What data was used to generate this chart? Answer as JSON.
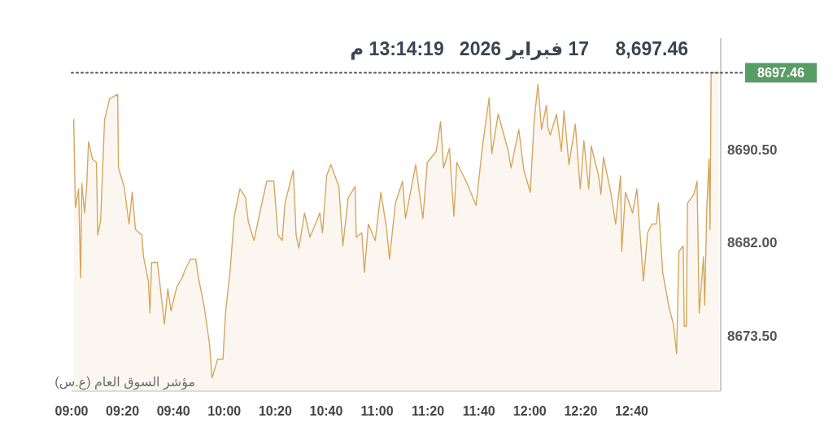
{
  "chart_data": {
    "type": "area",
    "title": "8,697.46",
    "subtitle": "17 فبراير 2026   13:14:19 م",
    "annotations": [
      "مؤشر السوق العام (ع.س)"
    ],
    "color": "#d6a65e",
    "x": [
      9.014,
      9.025,
      9.046,
      9.059,
      9.067,
      9.085,
      9.098,
      9.111,
      9.137,
      9.163,
      9.171,
      9.19,
      9.216,
      9.249,
      9.302,
      9.307,
      9.344,
      9.376,
      9.397,
      9.418,
      9.46,
      9.471,
      9.503,
      9.513,
      9.524,
      9.562,
      9.608,
      9.63,
      9.651,
      9.689,
      9.724,
      9.742,
      9.778,
      9.813,
      9.831,
      9.867,
      9.902,
      9.92,
      9.956,
      9.991,
      10.009,
      10.037,
      10.065,
      10.102,
      10.139,
      10.157,
      10.194,
      10.232,
      10.278,
      10.324,
      10.351,
      10.379,
      10.397,
      10.452,
      10.47,
      10.488,
      10.525,
      10.561,
      10.625,
      10.643,
      10.67,
      10.697,
      10.75,
      10.776,
      10.811,
      10.856,
      10.864,
      10.9,
      10.917,
      10.943,
      10.988,
      11.025,
      11.063,
      11.081,
      11.12,
      11.167,
      11.186,
      11.253,
      11.3,
      11.329,
      11.387,
      11.416,
      11.435,
      11.474,
      11.503,
      11.522,
      11.589,
      11.648,
      11.692,
      11.734,
      11.751,
      11.793,
      11.86,
      11.877,
      11.928,
      11.961,
      12.003,
      12.028,
      12.053,
      12.077,
      12.109,
      12.118,
      12.134,
      12.175,
      12.207,
      12.224,
      12.256,
      12.298,
      12.33,
      12.354,
      12.386,
      12.402,
      12.45,
      12.466,
      12.482,
      12.53,
      12.562,
      12.594,
      12.602,
      12.626,
      12.673,
      12.701,
      12.744,
      12.771,
      12.8,
      12.828,
      12.842,
      12.87,
      12.912,
      12.94,
      12.961,
      12.976,
      13.004,
      13.011,
      13.025,
      13.032,
      13.074,
      13.095,
      13.109,
      13.137,
      13.145,
      13.159,
      13.173,
      13.18,
      13.187,
      13.2386
    ],
    "values": [
      8693.2,
      8685.2,
      8686.9,
      8678.8,
      8687.4,
      8684.7,
      8686.9,
      8691.2,
      8689.6,
      8689.3,
      8682.7,
      8684.0,
      8693.2,
      8695.1,
      8695.5,
      8688.8,
      8687.1,
      8683.7,
      8686.6,
      8683.2,
      8682.7,
      8680.7,
      8678.5,
      8675.6,
      8680.2,
      8680.2,
      8674.6,
      8677.8,
      8675.8,
      8678.0,
      8678.8,
      8679.5,
      8680.5,
      8680.5,
      8678.8,
      8676.3,
      8672.9,
      8669.7,
      8671.4,
      8671.4,
      8675.8,
      8679.3,
      8684.4,
      8686.9,
      8686.1,
      8683.9,
      8682.2,
      8684.7,
      8687.6,
      8687.6,
      8682.7,
      8682.2,
      8685.6,
      8688.6,
      8682.7,
      8681.5,
      8684.7,
      8682.5,
      8684.7,
      8682.9,
      8688.1,
      8689.1,
      8687.1,
      8681.7,
      8686.1,
      8687.1,
      8682.5,
      8682.9,
      8679.3,
      8683.7,
      8682.2,
      8686.6,
      8683.2,
      8680.5,
      8685.6,
      8687.6,
      8684.2,
      8689.1,
      8684.2,
      8689.3,
      8690.3,
      8693.0,
      8688.8,
      8690.6,
      8684.4,
      8689.3,
      8687.4,
      8685.4,
      8691.0,
      8695.2,
      8690.1,
      8693.7,
      8690.3,
      8688.8,
      8692.3,
      8688.6,
      8686.6,
      8693.0,
      8696.4,
      8692.3,
      8694.5,
      8692.5,
      8691.8,
      8693.7,
      8690.3,
      8694.0,
      8689.1,
      8692.8,
      8686.9,
      8691.3,
      8686.9,
      8690.8,
      8688.1,
      8686.4,
      8689.8,
      8686.6,
      8683.7,
      8688.1,
      8681.2,
      8686.6,
      8684.7,
      8686.9,
      8678.5,
      8682.9,
      8683.7,
      8683.7,
      8685.6,
      8679.3,
      8676.1,
      8674.6,
      8671.9,
      8681.2,
      8681.7,
      8674.4,
      8674.4,
      8685.6,
      8686.4,
      8687.6,
      8675.6,
      8680.7,
      8676.3,
      8685.2,
      8689.6,
      8683.2,
      8697.46,
      8697.46
    ],
    "xlim": [
      9,
      13.25
    ],
    "xticks": [
      {
        "value": 9,
        "label": "09:00"
      },
      {
        "value": 9.3333,
        "label": "09:20"
      },
      {
        "value": 9.6667,
        "label": "09:40"
      },
      {
        "value": 10,
        "label": "10:00"
      },
      {
        "value": 10.3333,
        "label": "10:20"
      },
      {
        "value": 10.6667,
        "label": "10:40"
      },
      {
        "value": 11,
        "label": "11:00"
      },
      {
        "value": 11.3333,
        "label": "11:20"
      },
      {
        "value": 11.6667,
        "label": "11:40"
      },
      {
        "value": 12,
        "label": "12:00"
      },
      {
        "value": 12.3333,
        "label": "12:20"
      },
      {
        "value": 12.6667,
        "label": "12:40"
      }
    ],
    "ylim": [
      8668.5,
      8700.6
    ],
    "yticks": [
      {
        "value": 8690.5,
        "label": "8690.50"
      },
      {
        "value": 8682,
        "label": "8682.00"
      },
      {
        "value": 8673.5,
        "label": "8673.50"
      }
    ],
    "ref_lines": [
      {
        "axis": "y",
        "value": 8697.46,
        "label": "8697.46",
        "color": "#555555",
        "line_style": "dotted"
      }
    ]
  }
}
